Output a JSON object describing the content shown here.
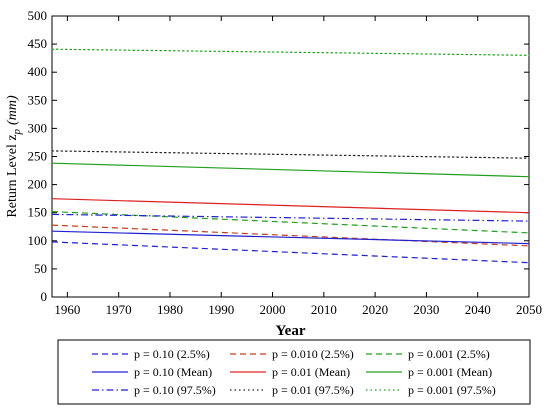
{
  "chart_data": {
    "type": "line",
    "title": "",
    "xlabel": "Year",
    "ylabel_main": "Return Level z",
    "ylabel_sub": "p",
    "ylabel_unit": "(mm)",
    "xlim": [
      1957,
      2050
    ],
    "ylim": [
      0,
      500
    ],
    "xticks": [
      1960,
      1970,
      1980,
      1990,
      2000,
      2010,
      2020,
      2030,
      2040,
      2050
    ],
    "yticks": [
      0,
      50,
      100,
      150,
      200,
      250,
      300,
      350,
      400,
      450,
      500
    ],
    "grid": false,
    "legend_position": "bottom",
    "series": [
      {
        "name": "p = 0.10 (2.5%)",
        "color": "#2020d0",
        "dash": "dashed",
        "x": [
          1957,
          2050
        ],
        "y": [
          98,
          61
        ]
      },
      {
        "name": "p = 0.010 (2.5%)",
        "color": "#c83c1e",
        "dash": "dashed",
        "x": [
          1957,
          2050
        ],
        "y": [
          128,
          91
        ]
      },
      {
        "name": "p = 0.001 (2.5%)",
        "color": "#20a020",
        "dash": "dashed",
        "x": [
          1957,
          2050
        ],
        "y": [
          152,
          114
        ]
      },
      {
        "name": "p = 0.10 (Mean)",
        "color": "#2020d0",
        "dash": "solid",
        "x": [
          1957,
          2050
        ],
        "y": [
          117,
          95
        ]
      },
      {
        "name": "p = 0.01 (Mean)",
        "color": "#e02020",
        "dash": "solid",
        "x": [
          1957,
          2050
        ],
        "y": [
          175,
          150
        ]
      },
      {
        "name": "p = 0.001 (Mean)",
        "color": "#20a020",
        "dash": "solid",
        "x": [
          1957,
          2050
        ],
        "y": [
          238,
          214
        ]
      },
      {
        "name": "p = 0.10 (97.5%)",
        "color": "#2020d0",
        "dash": "dashdot",
        "x": [
          1957,
          2050
        ],
        "y": [
          147,
          135
        ]
      },
      {
        "name": "p = 0.01 (97.5%)",
        "color": "#222222",
        "dash": "dotted",
        "x": [
          1957,
          2050
        ],
        "y": [
          260,
          247
        ]
      },
      {
        "name": "p = 0.001 (97.5%)",
        "color": "#20a020",
        "dash": "dotted",
        "x": [
          1957,
          2050
        ],
        "y": [
          441,
          430
        ]
      }
    ]
  }
}
